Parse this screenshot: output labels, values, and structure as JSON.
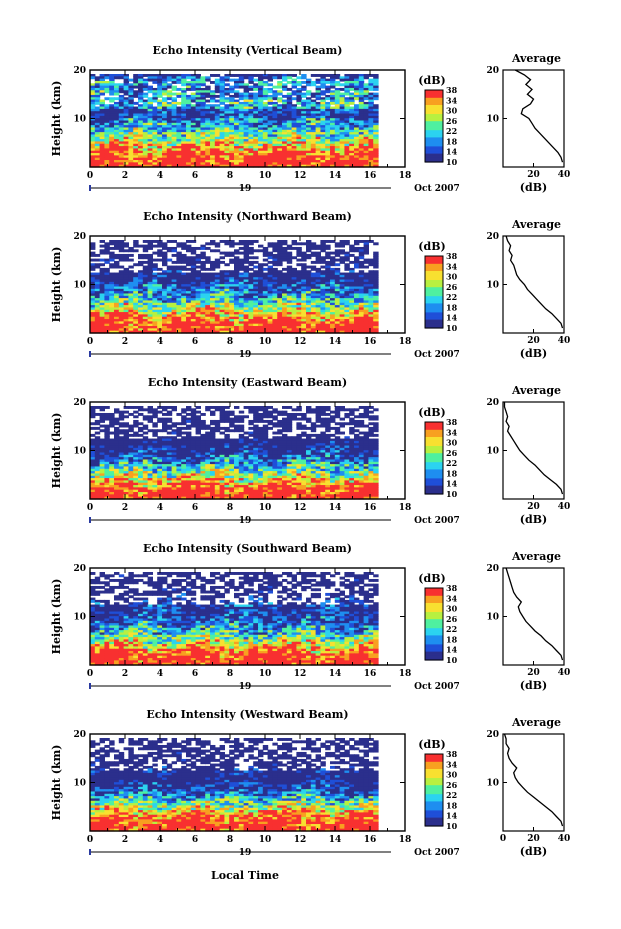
{
  "figure": {
    "xlabel": "Local Time",
    "date_day": "19",
    "date_month": "Oct 2007",
    "avg_title": "Average",
    "avg_xlabel": "(dB)",
    "colorbar_unit": "(dB)",
    "ylabel": "Height (km)"
  },
  "colors": {
    "colormap": [
      "#2b2f8c",
      "#1f4fd8",
      "#1e8ef0",
      "#2bd3f0",
      "#4ff0a0",
      "#b8f040",
      "#f8e030",
      "#f8a020",
      "#f83030"
    ]
  },
  "chart_data": [
    {
      "type": "heatmap",
      "title": "Echo Intensity (Vertical Beam)",
      "x_ticks": [
        0,
        2,
        4,
        6,
        8,
        10,
        12,
        14,
        16,
        18
      ],
      "xlim": [
        0,
        18
      ],
      "y_ticks": [
        10,
        20
      ],
      "ylim": [
        0,
        20
      ],
      "colorbar_ticks": [
        10,
        14,
        18,
        22,
        26,
        30,
        34,
        38
      ],
      "colorbar_range": [
        10,
        38
      ],
      "profile": {
        "x_ticks": [
          20,
          40
        ],
        "xlim": [
          0,
          40
        ],
        "height": [
          1,
          2,
          3,
          4,
          5,
          6,
          7,
          8,
          9,
          10,
          11,
          12,
          13,
          14,
          15,
          16,
          17,
          18,
          19,
          20
        ],
        "value": [
          39,
          38,
          36,
          33,
          30,
          27,
          24,
          21,
          19,
          17,
          12,
          13,
          18,
          20,
          16,
          19,
          15,
          18,
          14,
          8
        ]
      }
    },
    {
      "type": "heatmap",
      "title": "Echo Intensity (Northward Beam)",
      "x_ticks": [
        0,
        2,
        4,
        6,
        8,
        10,
        12,
        14,
        16,
        18
      ],
      "xlim": [
        0,
        18
      ],
      "y_ticks": [
        10,
        20
      ],
      "ylim": [
        0,
        20
      ],
      "colorbar_ticks": [
        10,
        14,
        18,
        22,
        26,
        30,
        34,
        38
      ],
      "colorbar_range": [
        10,
        38
      ],
      "profile": {
        "x_ticks": [
          20,
          40
        ],
        "xlim": [
          0,
          40
        ],
        "height": [
          1,
          2,
          3,
          4,
          5,
          6,
          7,
          8,
          9,
          10,
          11,
          12,
          13,
          14,
          15,
          16,
          17,
          18,
          19,
          20
        ],
        "value": [
          39,
          38,
          35,
          32,
          28,
          25,
          22,
          19,
          16,
          14,
          11,
          9,
          8,
          7,
          5,
          6,
          4,
          5,
          3,
          2
        ]
      }
    },
    {
      "type": "heatmap",
      "title": "Echo Intensity (Eastward Beam)",
      "x_ticks": [
        0,
        2,
        4,
        6,
        8,
        10,
        12,
        14,
        16,
        18
      ],
      "xlim": [
        0,
        18
      ],
      "y_ticks": [
        10,
        20
      ],
      "ylim": [
        0,
        20
      ],
      "colorbar_ticks": [
        10,
        14,
        18,
        22,
        26,
        30,
        34,
        38
      ],
      "colorbar_range": [
        10,
        38
      ],
      "profile": {
        "x_ticks": [
          20,
          40
        ],
        "xlim": [
          0,
          40
        ],
        "height": [
          1,
          2,
          3,
          4,
          5,
          6,
          7,
          8,
          9,
          10,
          11,
          12,
          13,
          14,
          15,
          16,
          17,
          18,
          19,
          20
        ],
        "value": [
          39,
          38,
          35,
          31,
          27,
          24,
          21,
          17,
          14,
          11,
          9,
          7,
          5,
          3,
          4,
          2,
          3,
          2,
          1,
          1
        ]
      }
    },
    {
      "type": "heatmap",
      "title": "Echo Intensity (Southward Beam)",
      "x_ticks": [
        0,
        2,
        4,
        6,
        8,
        10,
        12,
        14,
        16,
        18
      ],
      "xlim": [
        0,
        18
      ],
      "y_ticks": [
        10,
        20
      ],
      "ylim": [
        0,
        20
      ],
      "colorbar_ticks": [
        10,
        14,
        18,
        22,
        26,
        30,
        34,
        38
      ],
      "colorbar_range": [
        10,
        38
      ],
      "profile": {
        "x_ticks": [
          20,
          40
        ],
        "xlim": [
          0,
          40
        ],
        "height": [
          1,
          2,
          3,
          4,
          5,
          6,
          7,
          8,
          9,
          10,
          11,
          12,
          13,
          14,
          15,
          16,
          17,
          18,
          19,
          20
        ],
        "value": [
          39,
          38,
          35,
          32,
          28,
          25,
          21,
          18,
          15,
          13,
          11,
          10,
          12,
          9,
          7,
          6,
          5,
          4,
          3,
          2
        ]
      }
    },
    {
      "type": "heatmap",
      "title": "Echo Intensity (Westward Beam)",
      "x_ticks": [
        0,
        2,
        4,
        6,
        8,
        10,
        12,
        14,
        16,
        18
      ],
      "xlim": [
        0,
        18
      ],
      "y_ticks": [
        10,
        20
      ],
      "ylim": [
        0,
        20
      ],
      "colorbar_ticks": [
        10,
        14,
        18,
        22,
        26,
        30,
        34,
        38
      ],
      "colorbar_range": [
        10,
        38
      ],
      "profile": {
        "x_ticks": [
          0,
          20,
          40
        ],
        "xlim": [
          0,
          40
        ],
        "height": [
          1,
          2,
          3,
          4,
          5,
          6,
          7,
          8,
          9,
          10,
          11,
          12,
          13,
          14,
          15,
          16,
          17,
          18,
          19,
          20
        ],
        "value": [
          39,
          38,
          35,
          32,
          28,
          24,
          20,
          16,
          13,
          10,
          8,
          7,
          9,
          6,
          4,
          3,
          4,
          2,
          2,
          1
        ]
      }
    }
  ]
}
